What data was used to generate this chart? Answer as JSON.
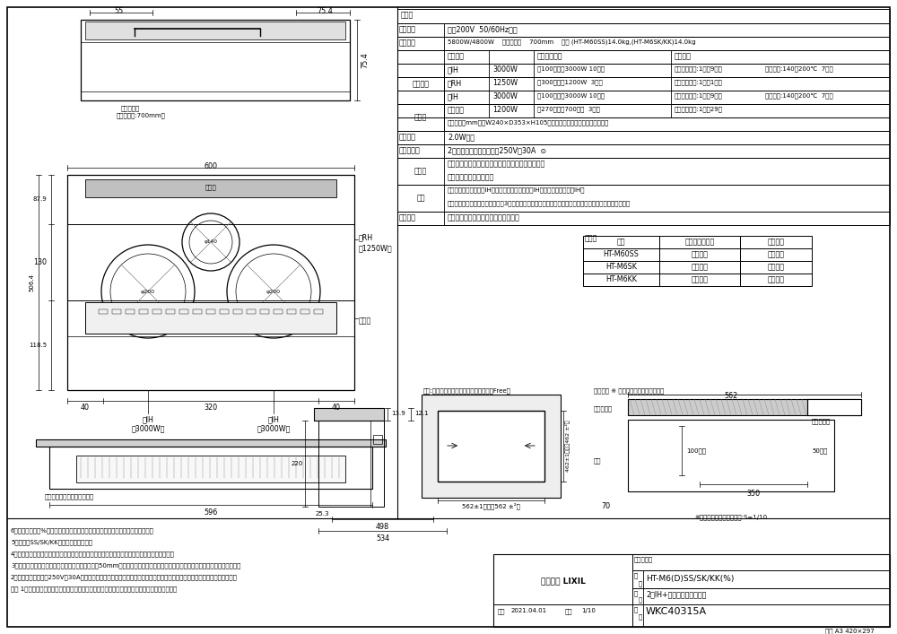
{
  "bg_color": "#ffffff",
  "spec_title": "仕様表",
  "page_info": "原図 A3 420×297",
  "rated_voltage_label": "定格電圧",
  "rated_voltage_val": "単相200V  50/60Hz兼用",
  "power_label": "消費電力",
  "power_val": "5800W/4800W    電源コード    700mm    質量 (HT-M60SS)14.0kg,(HT-M6SK/KK)14.0kg",
  "col_headers": [
    "消費電力",
    "火力調節範囲",
    "付加機能"
  ],
  "heater_label": "ヒーター",
  "heater_rows": [
    [
      "左IH",
      "3000W",
      "約100相当〜3000W 10段階",
      "調理タイマー:1分〜9時間",
      "湯沸温度:140〜200℃  7段階"
    ],
    [
      "後RH",
      "1250W",
      "約300相当〜1200W  3段階",
      "調理タイマー:1分〜1時間",
      ""
    ],
    [
      "右IH",
      "3000W",
      "約100相当〜3000W 10段階",
      "調理タイマー:1分〜9時間",
      "揚物温度:140〜200℃  7段階"
    ]
  ],
  "grill_label": "グリル",
  "grill_row": [
    "ヒーター",
    "1200W",
    "約270相当〜700相当  3段階",
    "調理タイマー:1分〜29分"
  ],
  "grill_dim": "有効寸法（mm）：W240×D353×H105（グリル皿寸法と天井までの高さ）",
  "standby_label": "待機電力",
  "standby_val": "2.0W未満",
  "plug_label": "電源プラグ",
  "plug_val": "2極接地極付プラグ・交流250V・30A",
  "acc_label": "付属品",
  "acc_val1": "前面パネル、排気カバー、焼網、グリルドア、受皿",
  "acc_val2": "取扱説明書、設置説明書",
  "func_label": "機能",
  "func_val1": "光湿度センサー（左右IH）、揚げ物温度調節（右IH）、煮込み機能（左IH）",
  "func_val2": "両面焼グリル、グリル自動調理（3メニュー）、高温注意表示、電源スイッチ自動オフ、チャイルドロック",
  "law_label": "関連法規",
  "law_val": "電気法、電気用品安全法、消防庁届出",
  "color_title": "色調表",
  "color_headers": [
    "品番",
    "トッププレート",
    "フェイス"
  ],
  "color_rows": [
    [
      "HT-M60SS",
      "シルバー",
      "シルバー"
    ],
    [
      "HT-M6SK",
      "ブラック",
      "シルバー"
    ],
    [
      "HT-M6KK",
      "ブラック",
      "ブラック"
    ]
  ],
  "notes": [
    "6．品番末尾の（%）にはキッチンシリーズによって記号が入る場合があります。",
    "5．品番のSS/SK/KKは色調を示します。",
    "4．鍋によっては使用できない鍋もありますので、取扱説明書記載の鍋を必ずご使用ください。",
    "3．カウンター後部抜き位置とキャビネット背板が50mm以下の場合は、後固定金具が通る箇に背板を一部切り欠いてください。",
    "2．コンセントは単相250V・30Aの接地極付コンセントを使用してください。また、コンセントの方向に注意してください。",
    "注） 1．心臓用ペースメーカーをお使いの方は、念のため専門医師と相談の上お使いください。"
  ],
  "tb_series": "シリーズ：",
  "tb_product": "HT-M6(D)SS/SK/KK(%)",
  "tb_desc": "2口IH+ラジエントヒーター",
  "tb_drawno": "WKC40315A",
  "tb_date": "2021.04.01",
  "tb_scale": "1/10",
  "tb_company": "株式会社 LIXIL",
  "tb_hinmei": "品\n名",
  "tb_zuban": "図\n番",
  "counter_label": "参考:カウンタートップ抜き寸法（尺度＝Free）",
  "backpanel_label": "固定時に ※ 背板の切欠きが必要な場合",
  "dim_562": "562",
  "dim_462": "462±1（大大462 ±²）",
  "dim_562b": "562±1（大大562 ±²）",
  "dim_70": "70",
  "dim_350": "350",
  "dim_100": "100以上",
  "dim_50": "50以上",
  "counter_txt": "カウンター",
  "kirikake_txt": "切り欠き部",
  "seiban_txt": "背板",
  "note_seiban": "※注：背板の切欠き寸法図:S=1/10"
}
